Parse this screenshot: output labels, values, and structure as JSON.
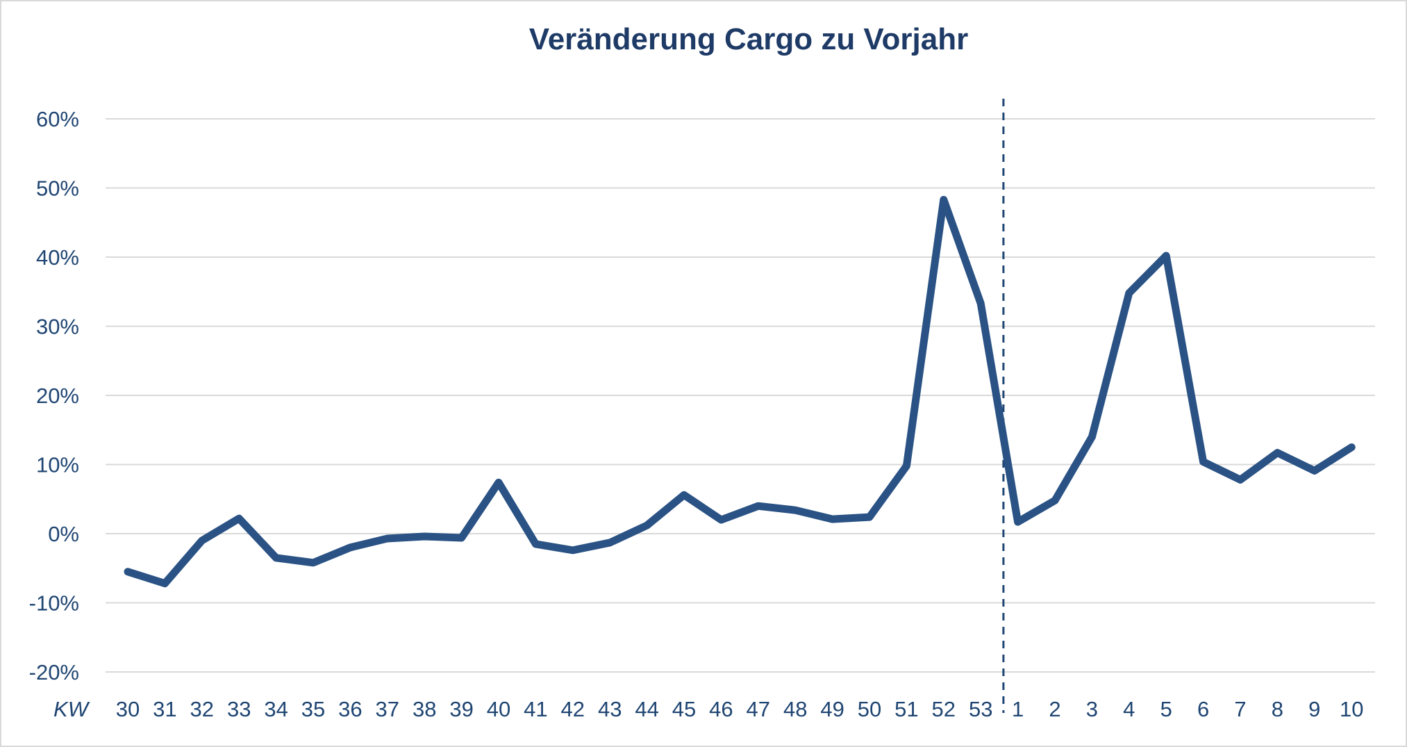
{
  "title": "Veränderung Cargo zu Vorjahr",
  "chart_data": {
    "type": "line",
    "title": "Veränderung Cargo zu Vorjahr",
    "x_unit_label": "KW",
    "categories": [
      "30",
      "31",
      "32",
      "33",
      "34",
      "35",
      "36",
      "37",
      "38",
      "39",
      "40",
      "41",
      "42",
      "43",
      "44",
      "45",
      "46",
      "47",
      "48",
      "49",
      "50",
      "51",
      "52",
      "53",
      "1",
      "2",
      "3",
      "4",
      "5",
      "6",
      "7",
      "8",
      "9",
      "10"
    ],
    "values_pct": [
      -5.5,
      -7.2,
      -1.0,
      2.2,
      -3.5,
      -4.2,
      -2.0,
      -0.7,
      -0.4,
      -0.6,
      7.4,
      -1.5,
      -2.4,
      -1.3,
      1.2,
      5.6,
      2.0,
      4.0,
      3.4,
      2.1,
      2.4,
      9.8,
      48.3,
      33.3,
      1.7,
      4.8,
      14.0,
      34.8,
      40.2,
      10.4,
      7.8,
      11.7,
      9.1,
      12.5
    ],
    "y_ticks": [
      {
        "value": 60,
        "label": "60%"
      },
      {
        "value": 50,
        "label": "50%"
      },
      {
        "value": 40,
        "label": "40%"
      },
      {
        "value": 30,
        "label": "30%"
      },
      {
        "value": 20,
        "label": "20%"
      },
      {
        "value": 10,
        "label": "10%"
      },
      {
        "value": 0,
        "label": "0%"
      },
      {
        "value": -10,
        "label": "-10%"
      },
      {
        "value": -20,
        "label": "-20%"
      }
    ],
    "ylim_pct": [
      -20,
      60
    ],
    "grid": "horizontal",
    "legend": "none",
    "divider_between_categories": [
      "53",
      "1"
    ]
  },
  "colors": {
    "line": "#2a5284",
    "grid": "#d9d9d9",
    "text": "#1f4572",
    "title": "#1e3a66",
    "divider": "#1f4572",
    "background": "#ffffff",
    "border": "#d9d9d9"
  }
}
